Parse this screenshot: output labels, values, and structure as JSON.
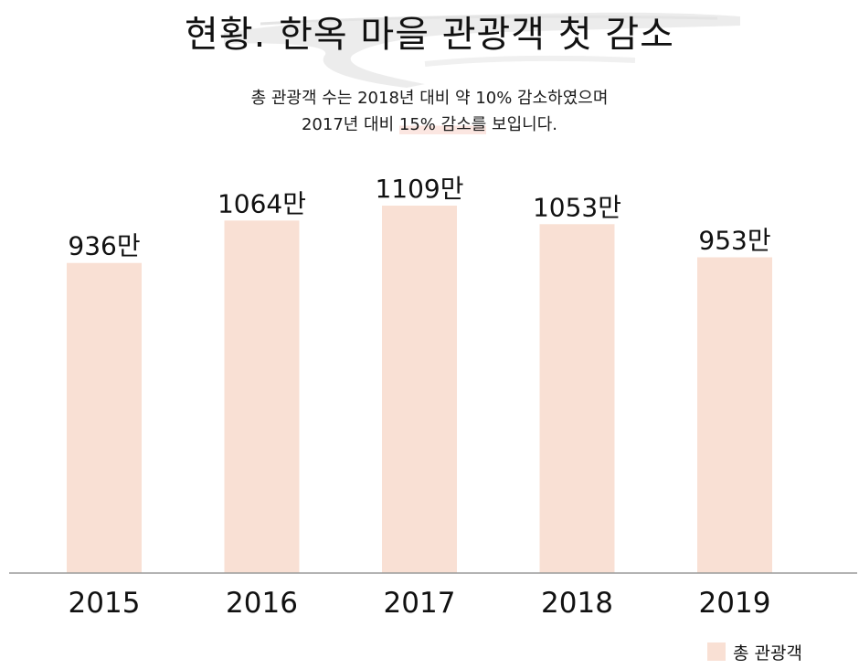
{
  "colors": {
    "bar": "#f9e0d4",
    "axis": "#9a9a9a",
    "text": "#111111",
    "highlight": "#f8d2c8"
  },
  "header": {
    "title": "현황. 한옥 마을 관광객 첫 감소",
    "subtitle_line1": "총 관광객 수는 2018년 대비 약 10% 감소하였으며",
    "subtitle_line2_prefix": "2017년 대비 ",
    "subtitle_line2_highlight": "15% 감소를",
    "subtitle_line2_suffix": " 보입니다."
  },
  "chart_data": {
    "type": "bar",
    "title": "현황. 한옥 마을 관광객 첫 감소",
    "categories": [
      "2015",
      "2016",
      "2017",
      "2018",
      "2019"
    ],
    "series": [
      {
        "name": "총 관광객",
        "values": [
          936,
          1064,
          1109,
          1053,
          953
        ],
        "labels": [
          "936만",
          "1064만",
          "1109만",
          "1053만",
          "953만"
        ]
      }
    ],
    "ylim": [
      0,
      1200
    ],
    "grid": false,
    "legend": "bottom-right"
  }
}
